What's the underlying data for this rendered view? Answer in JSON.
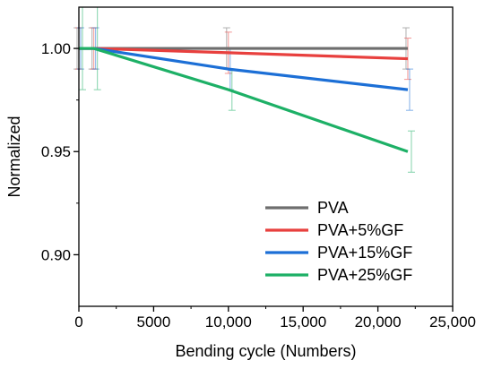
{
  "chart_data": {
    "type": "line",
    "title": "",
    "xlabel": "Bending cycle (Numbers)",
    "ylabel": "Normalized",
    "xlim": [
      0,
      25000
    ],
    "ylim": [
      0.875,
      1.02
    ],
    "x_ticks": [
      0,
      5000,
      10000,
      15000,
      20000,
      25000
    ],
    "x_tick_labels": [
      "0",
      "5000",
      "10,000",
      "15,000",
      "20,000",
      "25,000"
    ],
    "y_ticks": [
      0.9,
      0.95,
      1.0
    ],
    "y_tick_labels": [
      "0.90",
      "0.95",
      "1.00"
    ],
    "grid": false,
    "legend_position": "bottom-right",
    "series": [
      {
        "name": "PVA",
        "color": "#6e6e6e",
        "x": [
          0,
          1000,
          10000,
          22000
        ],
        "y": [
          1.0,
          1.0,
          1.0,
          1.0
        ],
        "error": [
          0.01,
          0.01,
          0.01,
          0.01
        ]
      },
      {
        "name": "PVA+5%GF",
        "color": "#e8403e",
        "x": [
          0,
          1000,
          10000,
          22000
        ],
        "y": [
          1.0,
          1.0,
          0.9979,
          0.995
        ],
        "error": [
          0.01,
          0.01,
          0.01,
          0.01
        ]
      },
      {
        "name": "PVA+15%GF",
        "color": "#1c6fd6",
        "x": [
          0,
          1000,
          10000,
          22000
        ],
        "y": [
          1.0,
          1.0,
          0.99,
          0.98
        ],
        "error": [
          0.01,
          0.01,
          0.01,
          0.01
        ]
      },
      {
        "name": "PVA+25%GF",
        "color": "#1db066",
        "x": [
          0,
          1000,
          10000,
          22000
        ],
        "y": [
          1.0,
          1.0,
          0.98,
          0.95
        ],
        "error": [
          0.02,
          0.02,
          0.01,
          0.01
        ]
      }
    ]
  }
}
